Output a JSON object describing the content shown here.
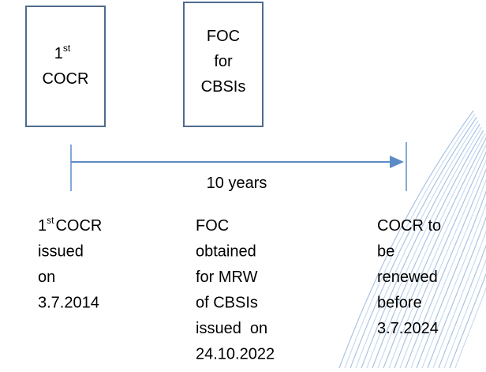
{
  "boxes": [
    {
      "number": "1",
      "superscript": "st",
      "lines": [
        "COCR"
      ]
    },
    {
      "lines": [
        "FOC",
        "for",
        "CBSIs"
      ]
    }
  ],
  "timeline": {
    "label": "10 years"
  },
  "notes": [
    {
      "number": "1",
      "superscript": "st",
      "first": "COCR",
      "lines": [
        "issued",
        "on",
        "3.7.2014"
      ]
    },
    {
      "lines": [
        "FOC",
        "obtained",
        "for MRW",
        "of CBSIs",
        "issued  on",
        "24.10.2022"
      ]
    },
    {
      "lines": [
        "COCR to",
        "be",
        "renewed",
        "before",
        "3.7.2024"
      ]
    }
  ]
}
